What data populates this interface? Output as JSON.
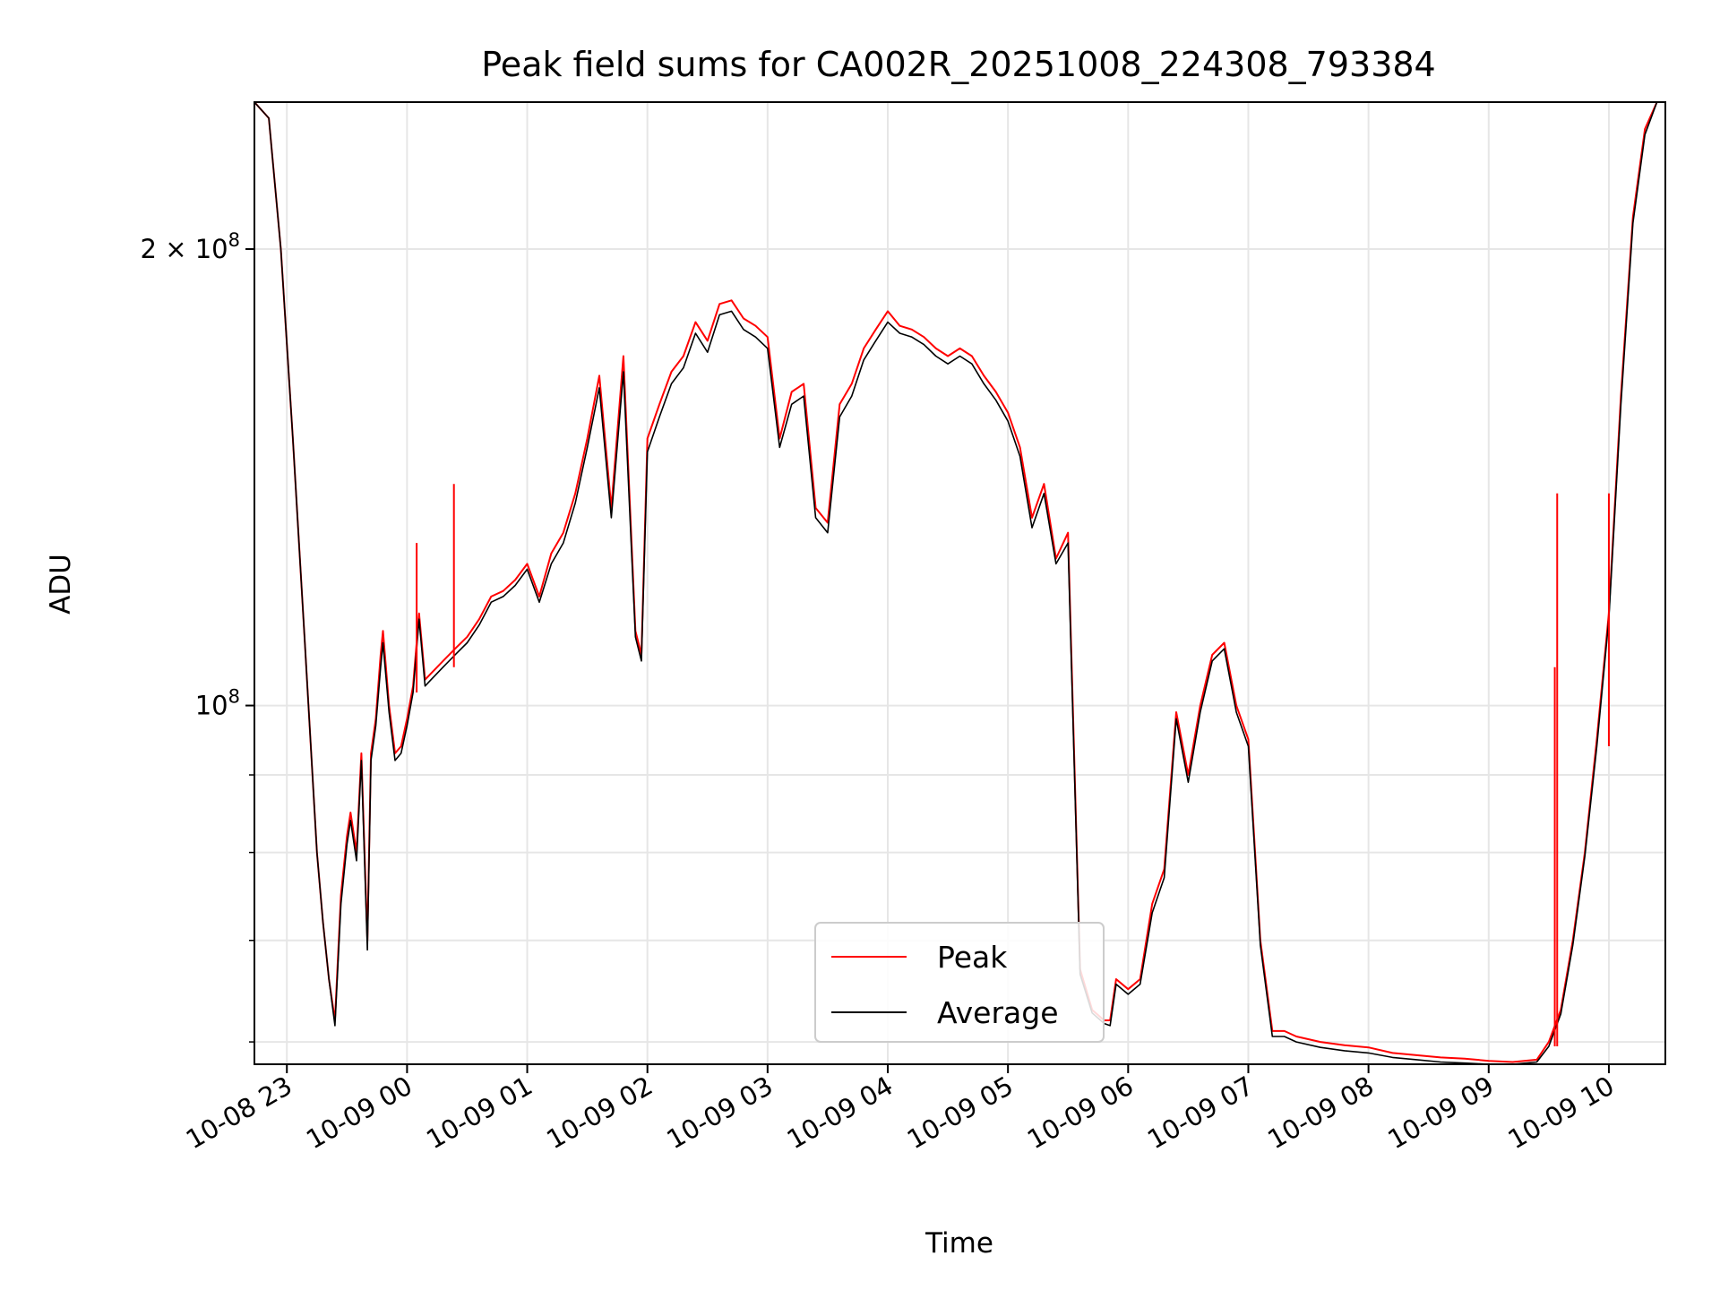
{
  "chart_data": {
    "type": "line",
    "title": "Peak field sums for CA002R_20251008_224308_793384",
    "xlabel": "Time",
    "ylabel": "ADU",
    "yscale": "log",
    "ylim": [
      58000000,
      250000000
    ],
    "xlim_hours": [
      -1.27,
      10.47
    ],
    "grid": true,
    "legend_position": "lower-center",
    "x_tick_labels": [
      {
        "hour": -1,
        "label": "10-08 23"
      },
      {
        "hour": 0,
        "label": "10-09 00"
      },
      {
        "hour": 1,
        "label": "10-09 01"
      },
      {
        "hour": 2,
        "label": "10-09 02"
      },
      {
        "hour": 3,
        "label": "10-09 03"
      },
      {
        "hour": 4,
        "label": "10-09 04"
      },
      {
        "hour": 5,
        "label": "10-09 05"
      },
      {
        "hour": 6,
        "label": "10-09 06"
      },
      {
        "hour": 7,
        "label": "10-09 07"
      },
      {
        "hour": 8,
        "label": "10-09 08"
      },
      {
        "hour": 9,
        "label": "10-09 09"
      },
      {
        "hour": 10,
        "label": "10-09 10"
      }
    ],
    "y_major_ticks": [
      {
        "value": 100000000,
        "base": "10",
        "exp": "8",
        "prefix": ""
      },
      {
        "value": 200000000,
        "base": "10",
        "exp": "8",
        "prefix": "2 × "
      }
    ],
    "y_minor_ticks": [
      60000000,
      70000000,
      80000000,
      90000000
    ],
    "x_hours": [
      -1.27,
      -1.15,
      -1.05,
      -0.95,
      -0.85,
      -0.75,
      -0.7,
      -0.65,
      -0.6,
      -0.55,
      -0.5,
      -0.47,
      -0.42,
      -0.38,
      -0.33,
      -0.3,
      -0.26,
      -0.22,
      -0.2,
      -0.15,
      -0.1,
      -0.05,
      0.0,
      0.05,
      0.1,
      0.15,
      0.2,
      0.3,
      0.4,
      0.5,
      0.6,
      0.7,
      0.8,
      0.9,
      1.0,
      1.1,
      1.2,
      1.3,
      1.4,
      1.5,
      1.6,
      1.7,
      1.8,
      1.9,
      1.95,
      2.0,
      2.1,
      2.2,
      2.3,
      2.4,
      2.5,
      2.6,
      2.7,
      2.8,
      2.9,
      3.0,
      3.1,
      3.2,
      3.3,
      3.4,
      3.5,
      3.6,
      3.7,
      3.8,
      3.9,
      4.0,
      4.1,
      4.2,
      4.3,
      4.4,
      4.5,
      4.6,
      4.7,
      4.8,
      4.9,
      5.0,
      5.1,
      5.2,
      5.3,
      5.4,
      5.5,
      5.6,
      5.7,
      5.8,
      5.85,
      5.9,
      6.0,
      6.1,
      6.2,
      6.3,
      6.4,
      6.5,
      6.6,
      6.7,
      6.8,
      6.9,
      7.0,
      7.1,
      7.2,
      7.3,
      7.4,
      7.6,
      7.8,
      8.0,
      8.2,
      8.4,
      8.6,
      8.8,
      9.0,
      9.2,
      9.4,
      9.5,
      9.6,
      9.7,
      9.8,
      9.9,
      10.0,
      10.1,
      10.2,
      10.3,
      10.4,
      10.47
    ],
    "series": [
      {
        "name": "Peak",
        "color": "#ff0000",
        "values": [
          250000000,
          244000000,
          200000000,
          150000000,
          110000000,
          80000000,
          72000000,
          66000000,
          62000000,
          75000000,
          82000000,
          85000000,
          80000000,
          93000000,
          70000000,
          93000000,
          98000000,
          108000000,
          112000000,
          100000000,
          93000000,
          94000000,
          98000000,
          103000000,
          115000000,
          104000000,
          105000000,
          107000000,
          109000000,
          111000000,
          114000000,
          118000000,
          119000000,
          121000000,
          124000000,
          118000000,
          126000000,
          130000000,
          138000000,
          150000000,
          165000000,
          135000000,
          170000000,
          112000000,
          108000000,
          150000000,
          158000000,
          166000000,
          170000000,
          179000000,
          174000000,
          184000000,
          185000000,
          180000000,
          178000000,
          175000000,
          150000000,
          161000000,
          163000000,
          135000000,
          132000000,
          158000000,
          163000000,
          172000000,
          177000000,
          182000000,
          178000000,
          177000000,
          175000000,
          172000000,
          170000000,
          172000000,
          170000000,
          165000000,
          161000000,
          156000000,
          148000000,
          133000000,
          140000000,
          125000000,
          130000000,
          67000000,
          63000000,
          62000000,
          62000000,
          66000000,
          65000000,
          66000000,
          74000000,
          78000000,
          99000000,
          90000000,
          100000000,
          108000000,
          110000000,
          100000000,
          95000000,
          70000000,
          61000000,
          61000000,
          60500000,
          60000000,
          59700000,
          59500000,
          59000000,
          58800000,
          58600000,
          58500000,
          58300000,
          58200000,
          58400000,
          60000000,
          63000000,
          70000000,
          80000000,
          95000000,
          115000000,
          160000000,
          210000000,
          240000000,
          250000000,
          250000000
        ]
      },
      {
        "name": "Average",
        "color": "#000000",
        "values": [
          250000000,
          244000000,
          200000000,
          150000000,
          110000000,
          80000000,
          72000000,
          66000000,
          61500000,
          74000000,
          81000000,
          84000000,
          79000000,
          92000000,
          69000000,
          92000000,
          97000000,
          106000000,
          110000000,
          99000000,
          92000000,
          93000000,
          97000000,
          102000000,
          114000000,
          103000000,
          104000000,
          106000000,
          108000000,
          110000000,
          113000000,
          117000000,
          118000000,
          120000000,
          123000000,
          117000000,
          124000000,
          128000000,
          136000000,
          148000000,
          162000000,
          133000000,
          166000000,
          111000000,
          107000000,
          147000000,
          155000000,
          163000000,
          167000000,
          176000000,
          171000000,
          181000000,
          182000000,
          177000000,
          175000000,
          172000000,
          148000000,
          158000000,
          160000000,
          133000000,
          130000000,
          155000000,
          160000000,
          169000000,
          174000000,
          179000000,
          176000000,
          175000000,
          173000000,
          170000000,
          168000000,
          170000000,
          168000000,
          163000000,
          159000000,
          154000000,
          146000000,
          131000000,
          138000000,
          124000000,
          128000000,
          66500000,
          62700000,
          61700000,
          61500000,
          65500000,
          64500000,
          65500000,
          73000000,
          77000000,
          98000000,
          89000000,
          99000000,
          107000000,
          109000000,
          99000000,
          94000000,
          69500000,
          60500000,
          60500000,
          60000000,
          59500000,
          59200000,
          59000000,
          58600000,
          58400000,
          58200000,
          58100000,
          58000000,
          58000000,
          58200000,
          59600000,
          62600000,
          69500000,
          79500000,
          94000000,
          114000000,
          158000000,
          208000000,
          238000000,
          250000000,
          250000000
        ]
      }
    ],
    "peak_spikes": [
      {
        "hour": 0.08,
        "value": 128000000
      },
      {
        "hour": 0.39,
        "value": 140000000
      },
      {
        "hour": 9.55,
        "value": 106000000
      },
      {
        "hour": 9.57,
        "value": 138000000
      },
      {
        "hour": 10.0,
        "value": 138000000
      }
    ]
  }
}
